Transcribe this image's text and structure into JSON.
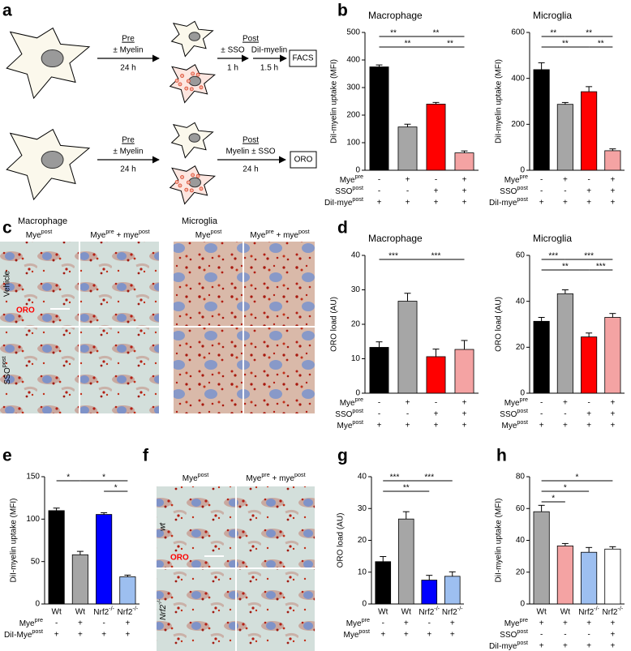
{
  "panel_labels": [
    "a",
    "b",
    "c",
    "d",
    "e",
    "f",
    "g",
    "h"
  ],
  "schematic": {
    "rows": [
      {
        "pre": "Pre",
        "step1": "± Myelin",
        "time1": "24 h",
        "post": "Post",
        "step2": "± SSO",
        "time2": "1 h",
        "step3": "DiI-myelin",
        "time3": "1.5 h",
        "readout": "FACS"
      },
      {
        "pre": "Pre",
        "step1": "± Myelin",
        "time1": "24 h",
        "post": "Post",
        "step2": "Myelin ± SSO",
        "time2": "24 h",
        "readout": "ORO"
      }
    ]
  },
  "micrographs_c": {
    "cell_types": [
      "Macrophage",
      "Microglia"
    ],
    "columns": [
      [
        {
          "text": "Mye"
        },
        {
          "sup": "post"
        }
      ],
      [
        {
          "text": "Mye"
        },
        {
          "sup": "pre"
        },
        {
          "text": " + mye"
        },
        {
          "sup": "post"
        }
      ],
      [
        {
          "text": "Mye"
        },
        {
          "sup": "post"
        }
      ],
      [
        {
          "text": "Mye"
        },
        {
          "sup": "pre"
        },
        {
          "text": " + mye"
        },
        {
          "sup": "post"
        }
      ]
    ],
    "rows": [
      "Vehicle",
      [
        {
          "text": "SSO"
        },
        {
          "sup": "post"
        }
      ]
    ],
    "stain": "ORO"
  },
  "micrographs_f": {
    "columns": [
      [
        {
          "text": "Mye"
        },
        {
          "sup": "post"
        }
      ],
      [
        {
          "text": "Mye"
        },
        {
          "sup": "pre"
        },
        {
          "text": " + mye"
        },
        {
          "sup": "post"
        }
      ]
    ],
    "rows": [
      "wt",
      [
        {
          "text": "Nrf2"
        },
        {
          "sup": "-/-"
        }
      ]
    ],
    "stain": "ORO"
  },
  "chart_data": [
    {
      "type": "bar",
      "title": "Macrophage",
      "ylabel": "DiI-myelin uptake (MFI)",
      "categories": [
        null,
        null,
        null,
        null
      ],
      "values": [
        375,
        157,
        240,
        63
      ],
      "errors": [
        7,
        10,
        6,
        7
      ],
      "colors": [
        "#000000",
        "#a6a6a6",
        "#ff0000",
        "#f4a3a3"
      ],
      "ylim": [
        0,
        500
      ],
      "yticks": [
        0,
        100,
        200,
        300,
        400,
        500
      ],
      "significance": [
        {
          "from": 0,
          "to": 1,
          "label": "**"
        },
        {
          "from": 1,
          "to": 3,
          "label": "**"
        },
        {
          "from": 0,
          "to": 2,
          "label": "**"
        },
        {
          "from": 2,
          "to": 3,
          "label": "**"
        }
      ],
      "conditions": [
        {
          "label": [
            {
              "text": "Mye"
            },
            {
              "sup": "pre"
            }
          ],
          "marks": [
            "-",
            "+",
            "-",
            "+"
          ]
        },
        {
          "label": [
            {
              "text": "SSO"
            },
            {
              "sup": "post"
            }
          ],
          "marks": [
            "-",
            "-",
            "+",
            "+"
          ]
        },
        {
          "label": [
            {
              "text": "DiI-mye"
            },
            {
              "sup": "post"
            }
          ],
          "marks": [
            "+",
            "+",
            "+",
            "+"
          ]
        }
      ]
    },
    {
      "type": "bar",
      "title": "Microglia",
      "ylabel": "DiI-myelin uptake (MFI)",
      "categories": [
        null,
        null,
        null,
        null
      ],
      "values": [
        438,
        287,
        342,
        85
      ],
      "errors": [
        30,
        8,
        22,
        8
      ],
      "colors": [
        "#000000",
        "#a6a6a6",
        "#ff0000",
        "#f4a3a3"
      ],
      "ylim": [
        0,
        600
      ],
      "yticks": [
        0,
        200,
        400,
        600
      ],
      "significance": [
        {
          "from": 0,
          "to": 1,
          "label": "**"
        },
        {
          "from": 1,
          "to": 3,
          "label": "**"
        },
        {
          "from": 0,
          "to": 2,
          "label": "**"
        },
        {
          "from": 2,
          "to": 3,
          "label": "**"
        }
      ],
      "conditions": [
        {
          "label": [
            {
              "text": "Mye"
            },
            {
              "sup": "pre"
            }
          ],
          "marks": [
            "-",
            "+",
            "-",
            "+"
          ]
        },
        {
          "label": [
            {
              "text": "SSO"
            },
            {
              "sup": "post"
            }
          ],
          "marks": [
            "-",
            "-",
            "+",
            "+"
          ]
        },
        {
          "label": [
            {
              "text": "DiI-mye"
            },
            {
              "sup": "post"
            }
          ],
          "marks": [
            "+",
            "+",
            "+",
            "+"
          ]
        }
      ]
    },
    {
      "type": "bar",
      "title": "Macrophage",
      "ylabel": "ORO load (AU)",
      "categories": [
        null,
        null,
        null,
        null
      ],
      "values": [
        13.3,
        26.7,
        10.6,
        12.7
      ],
      "errors": [
        1.6,
        2.3,
        2.2,
        2.6
      ],
      "colors": [
        "#000000",
        "#a6a6a6",
        "#ff0000",
        "#f4a3a3"
      ],
      "ylim": [
        0,
        40
      ],
      "yticks": [
        0,
        10,
        20,
        30,
        40
      ],
      "significance": [
        {
          "from": 0,
          "to": 1,
          "label": "***"
        },
        {
          "from": 1,
          "to": 3,
          "label": "***"
        }
      ],
      "conditions": [
        {
          "label": [
            {
              "text": "Mye"
            },
            {
              "sup": "pre"
            }
          ],
          "marks": [
            "-",
            "+",
            "-",
            "+"
          ]
        },
        {
          "label": [
            {
              "text": "SSO"
            },
            {
              "sup": "post"
            }
          ],
          "marks": [
            "-",
            "-",
            "+",
            "+"
          ]
        },
        {
          "label": [
            {
              "text": "Mye"
            },
            {
              "sup": "post"
            }
          ],
          "marks": [
            "+",
            "+",
            "+",
            "+"
          ]
        }
      ]
    },
    {
      "type": "bar",
      "title": "Microglia",
      "ylabel": "ORO load (AU)",
      "categories": [
        null,
        null,
        null,
        null
      ],
      "values": [
        31.3,
        43.3,
        24.5,
        33
      ],
      "errors": [
        1.7,
        1.7,
        1.7,
        1.7
      ],
      "colors": [
        "#000000",
        "#a6a6a6",
        "#ff0000",
        "#f4a3a3"
      ],
      "ylim": [
        0,
        60
      ],
      "yticks": [
        0,
        20,
        40,
        60
      ],
      "significance": [
        {
          "from": 0,
          "to": 1,
          "label": "***"
        },
        {
          "from": 1,
          "to": 3,
          "label": "***"
        },
        {
          "from": 0,
          "to": 2,
          "label": "**"
        },
        {
          "from": 2,
          "to": 3,
          "label": "***"
        }
      ],
      "conditions": [
        {
          "label": [
            {
              "text": "Mye"
            },
            {
              "sup": "pre"
            }
          ],
          "marks": [
            "-",
            "+",
            "-",
            "+"
          ]
        },
        {
          "label": [
            {
              "text": "SSO"
            },
            {
              "sup": "post"
            }
          ],
          "marks": [
            "-",
            "-",
            "+",
            "+"
          ]
        },
        {
          "label": [
            {
              "text": "Mye"
            },
            {
              "sup": "post"
            }
          ],
          "marks": [
            "+",
            "+",
            "+",
            "+"
          ]
        }
      ]
    },
    {
      "type": "bar",
      "ylabel": "DiI-myelin uptake (MFI)",
      "categories": [
        "Wt",
        "Wt",
        [
          {
            "text": "Nrf2"
          },
          {
            "sup": "-/-"
          }
        ],
        [
          {
            "text": "Nrf2"
          },
          {
            "sup": "-/-"
          }
        ]
      ],
      "values": [
        110,
        58,
        105.5,
        32
      ],
      "errors": [
        3,
        4,
        2,
        2
      ],
      "colors": [
        "#000000",
        "#a6a6a6",
        "#0000ff",
        "#9dbff0"
      ],
      "ylim": [
        0,
        150
      ],
      "yticks": [
        0,
        50,
        100,
        150
      ],
      "significance": [
        {
          "from": 0,
          "to": 1,
          "label": "*"
        },
        {
          "from": 1,
          "to": 3,
          "label": "*"
        },
        {
          "from": 2,
          "to": 3,
          "label": "*"
        }
      ],
      "conditions": [
        {
          "label": [
            {
              "text": "Mye"
            },
            {
              "sup": "pre"
            }
          ],
          "marks": [
            "-",
            "+",
            "-",
            "+"
          ]
        },
        {
          "label": [
            {
              "text": "DiI-Mye"
            },
            {
              "sup": "post"
            }
          ],
          "marks": [
            "+",
            "+",
            "+",
            "+"
          ]
        }
      ]
    },
    {
      "type": "bar",
      "ylabel": "ORO load (AU)",
      "categories": [
        "Wt",
        "Wt",
        [
          {
            "text": "Nrf2"
          },
          {
            "sup": "-/-"
          }
        ],
        [
          {
            "text": "Nrf2"
          },
          {
            "sup": "-/-"
          }
        ]
      ],
      "values": [
        13.3,
        26.7,
        7.5,
        8.7
      ],
      "errors": [
        1.6,
        2.3,
        1.5,
        1.4
      ],
      "colors": [
        "#000000",
        "#a6a6a6",
        "#0000ff",
        "#9dbff0"
      ],
      "ylim": [
        0,
        40
      ],
      "yticks": [
        0,
        10,
        20,
        30,
        40
      ],
      "significance": [
        {
          "from": 0,
          "to": 1,
          "label": "***"
        },
        {
          "from": 1,
          "to": 3,
          "label": "***"
        },
        {
          "from": 0,
          "to": 2,
          "label": "**"
        }
      ],
      "conditions": [
        {
          "label": [
            {
              "text": "Mye"
            },
            {
              "sup": "pre"
            }
          ],
          "marks": [
            "-",
            "+",
            "-",
            "+"
          ]
        },
        {
          "label": [
            {
              "text": "Mye"
            },
            {
              "sup": "post"
            }
          ],
          "marks": [
            "+",
            "+",
            "+",
            "+"
          ]
        }
      ]
    },
    {
      "type": "bar",
      "ylabel": "DiI-myelin uptake (MFI)",
      "categories": [
        "Wt",
        "Wt",
        [
          {
            "text": "Nrf2"
          },
          {
            "sup": "-/-"
          }
        ],
        [
          {
            "text": "Nrf2"
          },
          {
            "sup": "-/-"
          }
        ]
      ],
      "values": [
        58,
        36.5,
        32.5,
        34.5
      ],
      "errors": [
        4,
        1.5,
        3,
        1.5
      ],
      "colors": [
        "#a6a6a6",
        "#f4a3a3",
        "#9dbff0",
        "#ffffff"
      ],
      "ylim": [
        0,
        80
      ],
      "yticks": [
        0,
        20,
        40,
        60,
        80
      ],
      "significance": [
        {
          "from": 0,
          "to": 3,
          "label": "*"
        },
        {
          "from": 0,
          "to": 2,
          "label": "*"
        },
        {
          "from": 0,
          "to": 1,
          "label": "*"
        }
      ],
      "conditions": [
        {
          "label": [
            {
              "text": "Mye"
            },
            {
              "sup": "pre"
            }
          ],
          "marks": [
            "+",
            "+",
            "+",
            "+"
          ]
        },
        {
          "label": [
            {
              "text": "SSO"
            },
            {
              "sup": "post"
            }
          ],
          "marks": [
            "-",
            "-",
            "-",
            "+"
          ]
        },
        {
          "label": [
            {
              "text": "DiI-mye"
            },
            {
              "sup": "post"
            }
          ],
          "marks": [
            "+",
            "+",
            "+",
            "+"
          ]
        }
      ]
    }
  ]
}
